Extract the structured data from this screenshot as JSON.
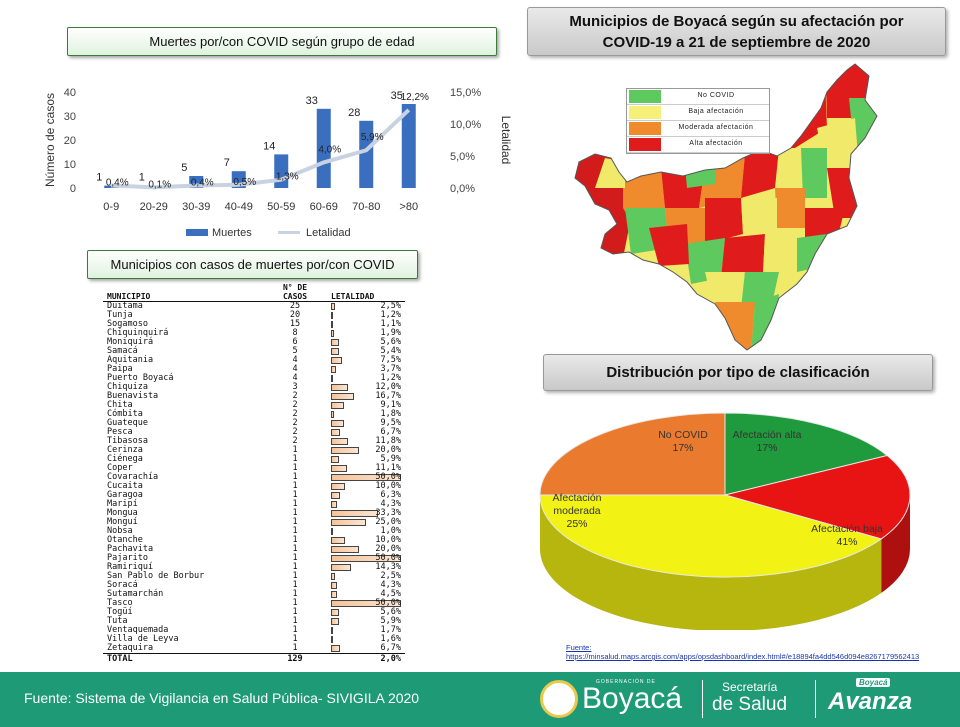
{
  "age_chart": {
    "title": "Muertes por/con COVID según grupo de edad",
    "chart_data": {
      "type": "bar",
      "categories": [
        "0-9",
        "20-29",
        "30-39",
        "40-49",
        "50-59",
        "60-69",
        "70-80",
        ">80"
      ],
      "series": [
        {
          "name": "Muertes",
          "values": [
            1,
            1,
            5,
            7,
            14,
            33,
            28,
            35
          ],
          "labels": [
            "1",
            "1",
            "5",
            "7",
            "14",
            "33",
            "28",
            "35"
          ],
          "color": "#3a6fc0"
        },
        {
          "name": "Letalidad",
          "values": [
            0.4,
            0.1,
            0.4,
            0.5,
            1.3,
            4.0,
            5.9,
            12.2
          ],
          "labels": [
            "0,4%",
            "0,1%",
            "0,4%",
            "0,5%",
            "1,3%",
            "4,0%",
            "5,9%",
            "12,2%"
          ],
          "color": "#c8d2e0"
        }
      ],
      "ylabel": "Número de casos",
      "y2label": "Letalidad",
      "ylim": [
        0,
        40
      ],
      "yticks": [
        "0",
        "10",
        "20",
        "30",
        "40"
      ],
      "y2lim": [
        0,
        15
      ],
      "y2ticks": [
        "0,0%",
        "5,0%",
        "10,0%",
        "15,0%"
      ],
      "legend": "bottom"
    }
  },
  "table": {
    "title": "Municipios con casos de muertes por/con COVID",
    "headers": {
      "municipio": "MUNICIPIO",
      "casos_1": "N° DE",
      "casos_2": "CASOS",
      "letalidad": "LETALIDAD"
    },
    "chart_data": {
      "type": "table",
      "rows": [
        {
          "municipio": "Duitama",
          "casos": "25",
          "letalidad": "2,5%",
          "value": 2.5
        },
        {
          "municipio": "Tunja",
          "casos": "20",
          "letalidad": "1,2%",
          "value": 1.2
        },
        {
          "municipio": "Sogamoso",
          "casos": "15",
          "letalidad": "1,1%",
          "value": 1.1
        },
        {
          "municipio": "Chiquinquirá",
          "casos": "8",
          "letalidad": "1,9%",
          "value": 1.9
        },
        {
          "municipio": "Moniquirá",
          "casos": "6",
          "letalidad": "5,6%",
          "value": 5.6
        },
        {
          "municipio": "Samacá",
          "casos": "5",
          "letalidad": "5,4%",
          "value": 5.4
        },
        {
          "municipio": "Aquitania",
          "casos": "4",
          "letalidad": "7,5%",
          "value": 7.5
        },
        {
          "municipio": "Paipa",
          "casos": "4",
          "letalidad": "3,7%",
          "value": 3.7
        },
        {
          "municipio": "Puerto Boyacá",
          "casos": "4",
          "letalidad": "1,2%",
          "value": 1.2
        },
        {
          "municipio": "Chiquiza",
          "casos": "3",
          "letalidad": "12,0%",
          "value": 12.0
        },
        {
          "municipio": "Buenavista",
          "casos": "2",
          "letalidad": "16,7%",
          "value": 16.7
        },
        {
          "municipio": "Chita",
          "casos": "2",
          "letalidad": "9,1%",
          "value": 9.1
        },
        {
          "municipio": "Cómbita",
          "casos": "2",
          "letalidad": "1,8%",
          "value": 1.8
        },
        {
          "municipio": "Guateque",
          "casos": "2",
          "letalidad": "9,5%",
          "value": 9.5
        },
        {
          "municipio": "Pesca",
          "casos": "2",
          "letalidad": "6,7%",
          "value": 6.7
        },
        {
          "municipio": "Tibasosa",
          "casos": "2",
          "letalidad": "11,8%",
          "value": 11.8
        },
        {
          "municipio": "Cerinza",
          "casos": "1",
          "letalidad": "20,0%",
          "value": 20.0
        },
        {
          "municipio": "Ciénega",
          "casos": "1",
          "letalidad": "5,9%",
          "value": 5.9
        },
        {
          "municipio": "Coper",
          "casos": "1",
          "letalidad": "11,1%",
          "value": 11.1
        },
        {
          "municipio": "Covarachía",
          "casos": "1",
          "letalidad": "50,0%",
          "value": 50.0
        },
        {
          "municipio": "Cucaita",
          "casos": "1",
          "letalidad": "10,0%",
          "value": 10.0
        },
        {
          "municipio": "Garagoa",
          "casos": "1",
          "letalidad": "6,3%",
          "value": 6.3
        },
        {
          "municipio": "Maripí",
          "casos": "1",
          "letalidad": "4,3%",
          "value": 4.3
        },
        {
          "municipio": "Mongua",
          "casos": "1",
          "letalidad": "33,3%",
          "value": 33.3
        },
        {
          "municipio": "Monguí",
          "casos": "1",
          "letalidad": "25,0%",
          "value": 25.0
        },
        {
          "municipio": "Nobsa",
          "casos": "1",
          "letalidad": "1,0%",
          "value": 1.0
        },
        {
          "municipio": "Otanche",
          "casos": "1",
          "letalidad": "10,0%",
          "value": 10.0
        },
        {
          "municipio": "Pachavita",
          "casos": "1",
          "letalidad": "20,0%",
          "value": 20.0
        },
        {
          "municipio": "Pajarito",
          "casos": "1",
          "letalidad": "50,0%",
          "value": 50.0
        },
        {
          "municipio": "Ramiriquí",
          "casos": "1",
          "letalidad": "14,3%",
          "value": 14.3
        },
        {
          "municipio": "San Pablo de Borbur",
          "casos": "1",
          "letalidad": "2,5%",
          "value": 2.5
        },
        {
          "municipio": "Soracá",
          "casos": "1",
          "letalidad": "4,3%",
          "value": 4.3
        },
        {
          "municipio": "Sutamarchán",
          "casos": "1",
          "letalidad": "4,5%",
          "value": 4.5
        },
        {
          "municipio": "Tasco",
          "casos": "1",
          "letalidad": "50,0%",
          "value": 50.0
        },
        {
          "municipio": "Togüí",
          "casos": "1",
          "letalidad": "5,6%",
          "value": 5.6
        },
        {
          "municipio": "Tuta",
          "casos": "1",
          "letalidad": "5,9%",
          "value": 5.9
        },
        {
          "municipio": "Ventaquemada",
          "casos": "1",
          "letalidad": "1,7%",
          "value": 1.7
        },
        {
          "municipio": "Villa de Leyva",
          "casos": "1",
          "letalidad": "1,6%",
          "value": 1.6
        },
        {
          "municipio": "Zetaquira",
          "casos": "1",
          "letalidad": "6,7%",
          "value": 6.7
        }
      ],
      "total": {
        "municipio": "TOTAL",
        "casos": "129",
        "letalidad": "2,0%"
      }
    }
  },
  "map": {
    "title_line1": "Municipios de Boyacá según su afectación por",
    "title_line2": "COVID-19 a 21 de septiembre de 2020",
    "legend": [
      {
        "label": "No COVID",
        "color": "#5ec95e"
      },
      {
        "label": "Baja afectación",
        "color": "#f6f07a"
      },
      {
        "label": "Moderada afectación",
        "color": "#ef8b2c"
      },
      {
        "label": "Alta afectación",
        "color": "#e01b1b"
      }
    ]
  },
  "pie": {
    "title": "Distribución por tipo de clasificación",
    "chart_data": {
      "type": "pie",
      "slices": [
        {
          "label": "No COVID",
          "pct_label": "17%",
          "value": 17,
          "color": "#1f9a3c"
        },
        {
          "label": "Afectación alta",
          "pct_label": "17%",
          "value": 17,
          "color": "#e81414"
        },
        {
          "label": "Afectación baja",
          "pct_label": "41%",
          "value": 41,
          "color": "#f2f214"
        },
        {
          "label": "Afectación moderada",
          "label_line1": "Afectación",
          "label_line2": "moderada",
          "pct_label": "25%",
          "value": 25,
          "color": "#ea7a2e"
        }
      ]
    }
  },
  "source_link": {
    "label": "Fuente:",
    "url": "https://minsalud.maps.arcgis.com/apps/opsdashboard/index.html#/e18894fa4dd546d094e8267179562413"
  },
  "footer": {
    "source": "Fuente: Sistema de Vigilancia en Salud Pública- SIVIGILA 2020",
    "logo_text": "Boyacá",
    "logo_top": "GOBERNACIÓN DE",
    "secretaria_1": "Secretaría",
    "secretaria_2": "de Salud",
    "avanza_small": "Boyacá",
    "avanza": "Avanza"
  }
}
